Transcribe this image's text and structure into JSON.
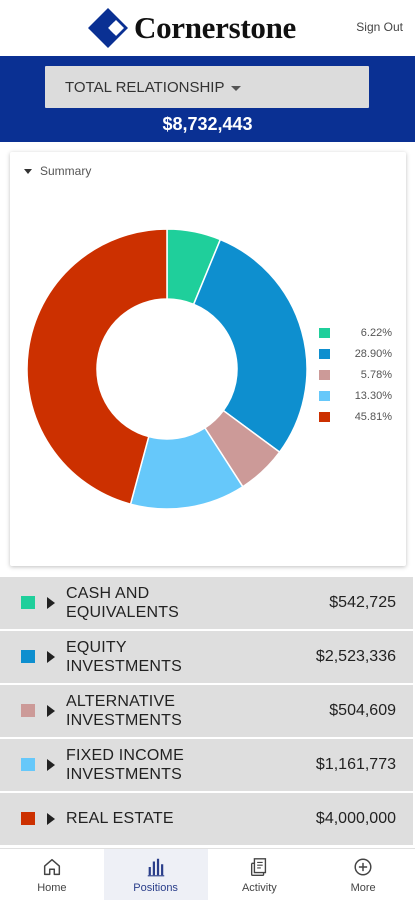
{
  "header": {
    "brand": "Cornerstone",
    "signout_label": "Sign Out",
    "logo_color": "#0a3093"
  },
  "relationship": {
    "selector_label": "TOTAL RELATIONSHIP",
    "total": "$8,732,443"
  },
  "summary": {
    "toggle_label": "Summary"
  },
  "chart_data": {
    "type": "pie",
    "donut": true,
    "categories": [
      "CASH AND EQUIVALENTS",
      "EQUITY INVESTMENTS",
      "ALTERNATIVE INVESTMENTS",
      "FIXED INCOME INVESTMENTS",
      "REAL ESTATE"
    ],
    "values": [
      6.22,
      28.9,
      5.78,
      13.3,
      45.81
    ],
    "value_labels": [
      "6.22%",
      "28.90%",
      "5.78%",
      "13.30%",
      "45.81%"
    ],
    "colors": [
      "#1fcf9b",
      "#0e8fcf",
      "#cc9a98",
      "#66c8fa",
      "#cc3000"
    ],
    "legend_position": "right"
  },
  "positions": [
    {
      "name_line1": "CASH AND",
      "name_line2": "EQUIVALENTS",
      "amount": "$542,725",
      "color": "#1fcf9b"
    },
    {
      "name_line1": "EQUITY",
      "name_line2": "INVESTMENTS",
      "amount": "$2,523,336",
      "color": "#0e8fcf"
    },
    {
      "name_line1": "ALTERNATIVE",
      "name_line2": "INVESTMENTS",
      "amount": "$504,609",
      "color": "#cc9a98"
    },
    {
      "name_line1": "FIXED INCOME",
      "name_line2": "INVESTMENTS",
      "amount": "$1,161,773",
      "color": "#66c8fa"
    },
    {
      "name_line1": "REAL ESTATE",
      "name_line2": "",
      "amount": "$4,000,000",
      "color": "#cc3000"
    }
  ],
  "nav": {
    "items": [
      {
        "label": "Home",
        "icon": "home-icon"
      },
      {
        "label": "Positions",
        "icon": "bar-chart-icon",
        "active": true
      },
      {
        "label": "Activity",
        "icon": "receipt-icon"
      },
      {
        "label": "More",
        "icon": "plus-circle-icon"
      }
    ]
  }
}
